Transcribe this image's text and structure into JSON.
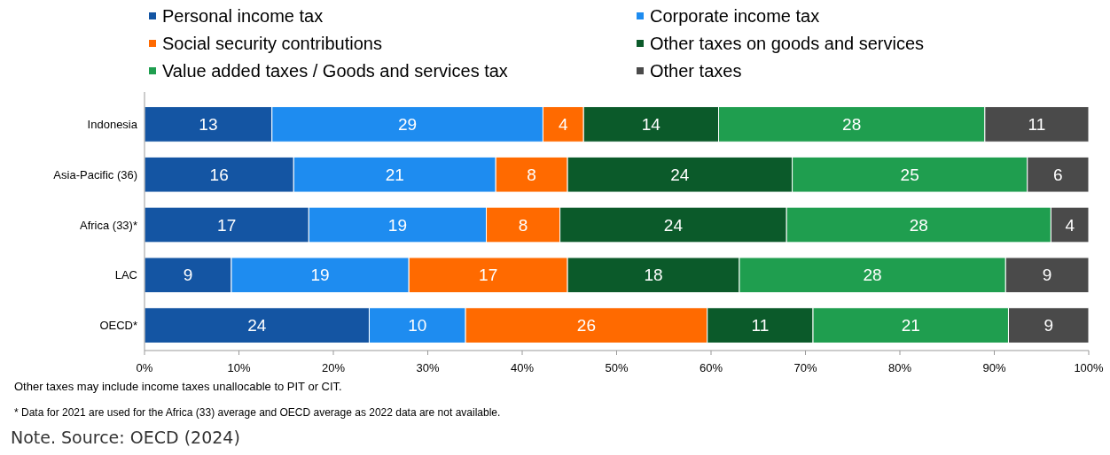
{
  "chart_data": {
    "type": "bar",
    "orientation": "horizontal",
    "stacked": true,
    "categories": [
      "Indonesia",
      "Asia-Pacific (36)",
      "Africa (33)*",
      "LAC",
      "OECD*"
    ],
    "series": [
      {
        "name": "Personal income tax",
        "color": "#1455a3",
        "values": [
          13.5,
          15.8,
          17.4,
          9.2,
          23.8
        ],
        "value_labels": [
          "13",
          "16",
          "17",
          "9",
          "24"
        ]
      },
      {
        "name": "Corporate income tax",
        "color": "#1e8cf0",
        "values": [
          28.7,
          21.4,
          18.8,
          18.8,
          10.2
        ],
        "value_labels": [
          "29",
          "21",
          "19",
          "19",
          "10"
        ]
      },
      {
        "name": "Social security contributions",
        "color": "#ff6a00",
        "values": [
          4.3,
          7.6,
          7.8,
          16.8,
          25.6
        ],
        "value_labels": [
          "4",
          "8",
          "8",
          "17",
          "26"
        ]
      },
      {
        "name": "Other taxes on goods and services",
        "color": "#0b5a2a",
        "values": [
          14.3,
          23.8,
          24,
          18.2,
          11.2
        ],
        "value_labels": [
          "14",
          "24",
          "24",
          "18",
          "11"
        ]
      },
      {
        "name": "Value added taxes / Goods and services tax",
        "color": "#1f9e4f",
        "values": [
          28.2,
          24.9,
          28,
          28.2,
          20.7
        ],
        "value_labels": [
          "28",
          "25",
          "28",
          "28",
          "21"
        ]
      },
      {
        "name": "Other taxes",
        "color": "#4a4a4a",
        "values": [
          11,
          6.5,
          4,
          8.8,
          8.5
        ],
        "value_labels": [
          "11",
          "6",
          "4",
          "9",
          "9"
        ]
      }
    ],
    "xlim": [
      0,
      100
    ],
    "xticks": [
      {
        "value": 0,
        "label": "0%"
      },
      {
        "value": 10,
        "label": "10%"
      },
      {
        "value": 20,
        "label": "20%"
      },
      {
        "value": 30,
        "label": "30%"
      },
      {
        "value": 40,
        "label": "40%"
      },
      {
        "value": 50,
        "label": "50%"
      },
      {
        "value": 60,
        "label": "60%"
      },
      {
        "value": 70,
        "label": "70%"
      },
      {
        "value": 80,
        "label": "80%"
      },
      {
        "value": 90,
        "label": "90%"
      },
      {
        "value": 100,
        "label": "100%"
      }
    ],
    "legend": "top",
    "grid": false,
    "annotations": [
      "Other taxes may include income taxes unallocable to PIT or CIT.",
      "* Data for 2021 are used for the Africa (33) average and OECD average as 2022 data are not available.",
      "Note. Source: OECD (2024)"
    ]
  }
}
